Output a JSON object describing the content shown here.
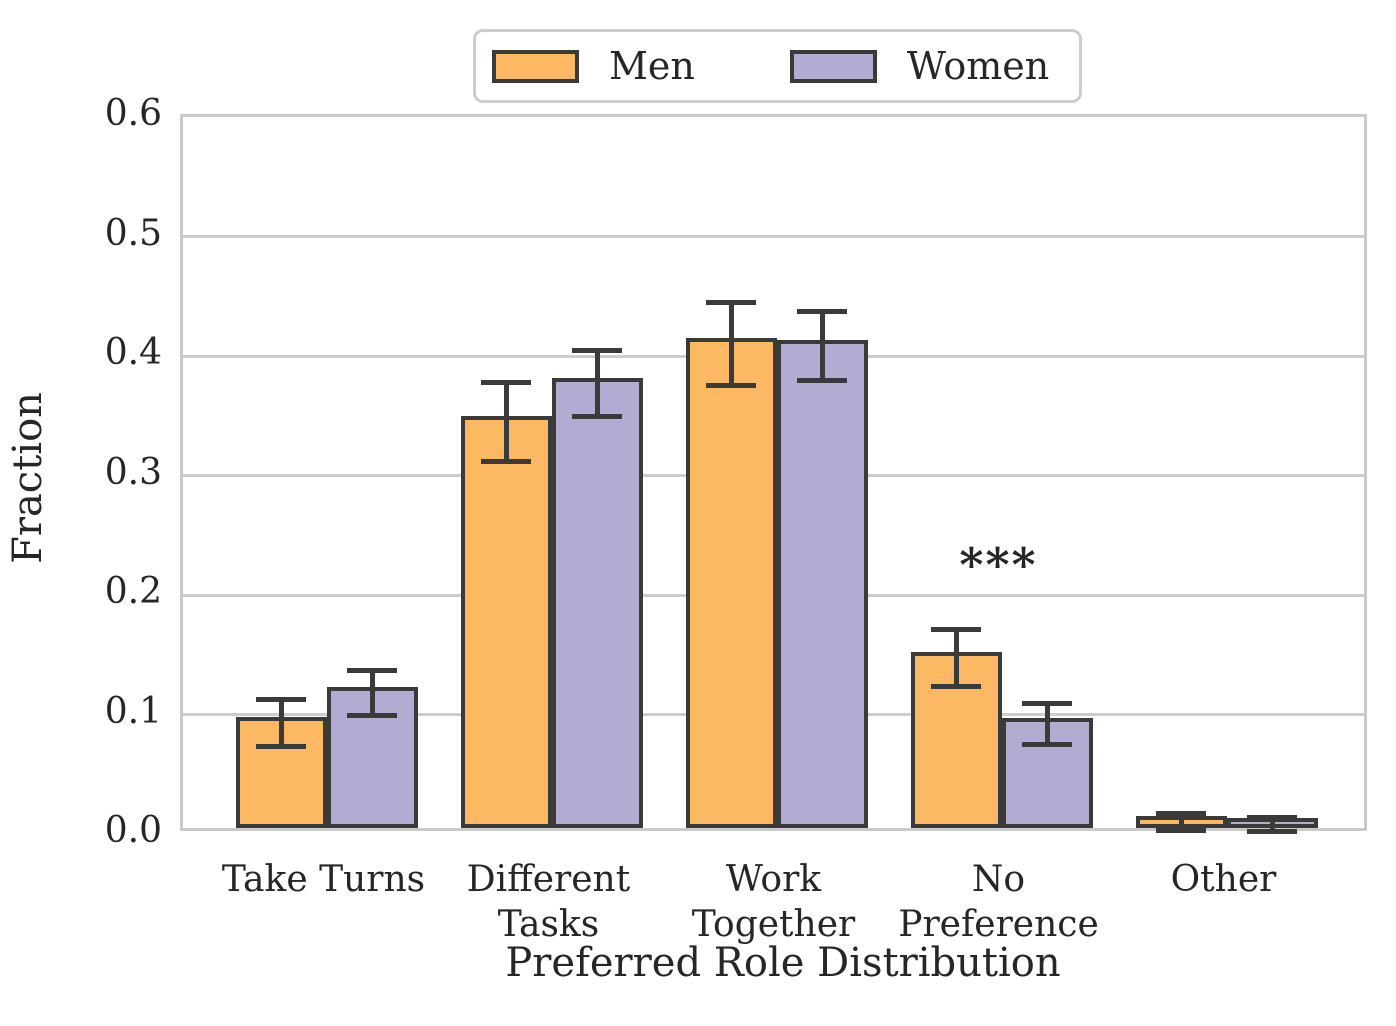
{
  "figure": {
    "xlabel": "Preferred Role Distribution",
    "ylabel": "Fraction"
  },
  "chart_data": {
    "type": "bar",
    "title": "",
    "categories": [
      "Take Turns",
      "Different Tasks",
      "Work Together",
      "No Preference",
      "Other"
    ],
    "category_label_lines": [
      "Take Turns",
      "Different\nTasks",
      "Work\nTogether",
      "No\nPreference",
      "Other"
    ],
    "xlabel": "Preferred Role Distribution",
    "ylabel": "Fraction",
    "ylim": [
      0.0,
      0.6
    ],
    "ytick_step": 0.1,
    "ytick_labels": [
      "0.0",
      "0.1",
      "0.2",
      "0.3",
      "0.4",
      "0.5",
      "0.6"
    ],
    "grid": true,
    "legend_position": "top-center",
    "bar_edge_color": "#3a3a3a",
    "grid_color": "#cdcdcd",
    "series": [
      {
        "name": "Men",
        "color": "#fdb863",
        "values": [
          0.093,
          0.345,
          0.41,
          0.147,
          0.01
        ],
        "errors": [
          0.022,
          0.035,
          0.037,
          0.026,
          0.009
        ]
      },
      {
        "name": "Women",
        "color": "#b2abd2",
        "values": [
          0.118,
          0.377,
          0.408,
          0.092,
          0.008
        ],
        "errors": [
          0.021,
          0.03,
          0.031,
          0.019,
          0.008
        ]
      }
    ],
    "annotations": [
      {
        "text": "***",
        "category": "No Preference",
        "y": 0.23
      }
    ]
  }
}
